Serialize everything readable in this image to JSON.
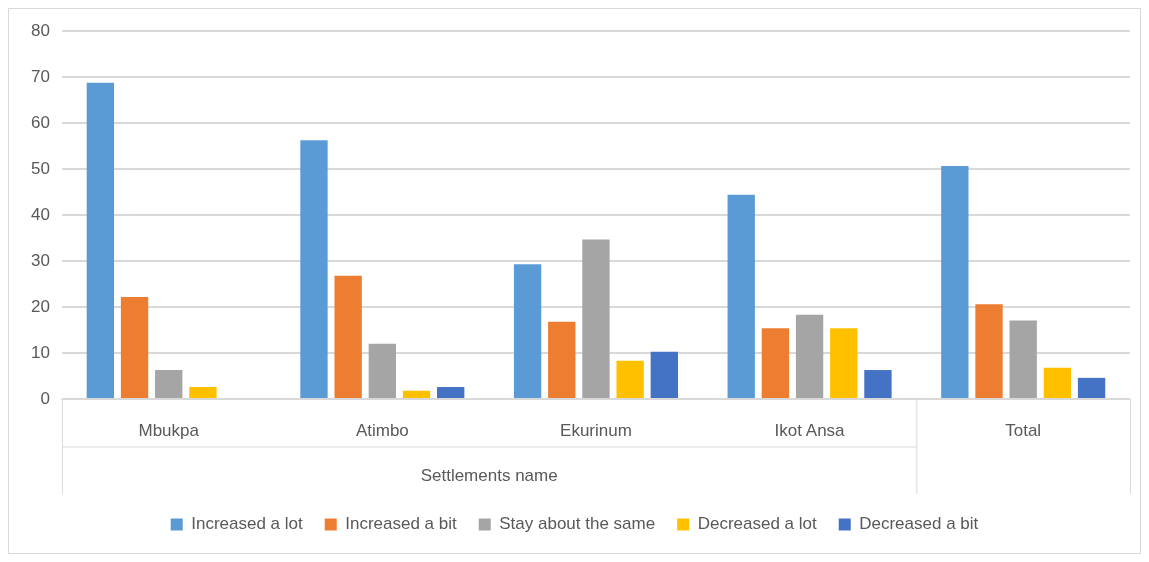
{
  "chart_data": {
    "type": "bar",
    "xlabel": "Settlements name",
    "categories": [
      "Mbukpa",
      "Atimbo",
      "Ekurinum",
      "Ikot Ansa",
      "Total"
    ],
    "series": [
      {
        "name": "Increased a lot",
        "color": "#5b9bd5",
        "values": [
          68.8,
          56.3,
          29.3,
          44.4,
          50.7
        ]
      },
      {
        "name": "Increased a bit",
        "color": "#ed7d31",
        "values": [
          22.2,
          26.8,
          16.8,
          15.4,
          20.6
        ]
      },
      {
        "name": "Stay about the same",
        "color": "#a5a5a5",
        "values": [
          6.3,
          12.0,
          34.7,
          18.3,
          17.1
        ]
      },
      {
        "name": "Decreased a lot",
        "color": "#ffc000",
        "values": [
          2.6,
          1.8,
          8.3,
          15.4,
          6.8
        ]
      },
      {
        "name": "Decreased a bit",
        "color": "#4472c4",
        "values": [
          0,
          2.6,
          10.3,
          6.3,
          4.6
        ]
      }
    ],
    "ylim": [
      0,
      80
    ],
    "yticks": [
      0,
      10,
      20,
      30,
      40,
      50,
      60,
      70,
      80
    ],
    "grid": "y",
    "legend": "bottom"
  }
}
